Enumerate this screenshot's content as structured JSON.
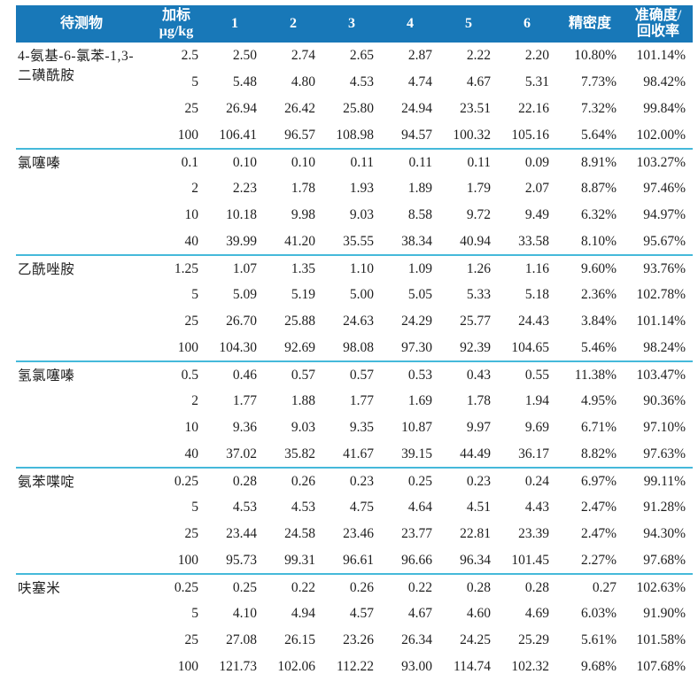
{
  "table": {
    "colors": {
      "header_bg": "#1878b8",
      "header_text": "#ffffff",
      "divider": "#45b9da",
      "body_text": "#1e1e1e"
    },
    "header": {
      "analyte": "待测物",
      "spike_line1": "加标",
      "spike_line2": "μg/kg",
      "replicates": [
        "1",
        "2",
        "3",
        "4",
        "5",
        "6"
      ],
      "precision": "精密度",
      "accuracy_line1": "准确度/",
      "accuracy_line2": "回收率"
    },
    "groups": [
      {
        "analyte": "4-氨基-6-氯苯-1,3-二磺酰胺",
        "rows": [
          {
            "spike": "2.5",
            "values": [
              "2.50",
              "2.74",
              "2.65",
              "2.87",
              "2.22",
              "2.20"
            ],
            "precision": "10.80%",
            "accuracy": "101.14%"
          },
          {
            "spike": "5",
            "values": [
              "5.48",
              "4.80",
              "4.53",
              "4.74",
              "4.67",
              "5.31"
            ],
            "precision": "7.73%",
            "accuracy": "98.42%"
          },
          {
            "spike": "25",
            "values": [
              "26.94",
              "26.42",
              "25.80",
              "24.94",
              "23.51",
              "22.16"
            ],
            "precision": "7.32%",
            "accuracy": "99.84%"
          },
          {
            "spike": "100",
            "values": [
              "106.41",
              "96.57",
              "108.98",
              "94.57",
              "100.32",
              "105.16"
            ],
            "precision": "5.64%",
            "accuracy": "102.00%"
          }
        ]
      },
      {
        "analyte": "氯噻嗪",
        "rows": [
          {
            "spike": "0.1",
            "values": [
              "0.10",
              "0.10",
              "0.11",
              "0.11",
              "0.11",
              "0.09"
            ],
            "precision": "8.91%",
            "accuracy": "103.27%"
          },
          {
            "spike": "2",
            "values": [
              "2.23",
              "1.78",
              "1.93",
              "1.89",
              "1.79",
              "2.07"
            ],
            "precision": "8.87%",
            "accuracy": "97.46%"
          },
          {
            "spike": "10",
            "values": [
              "10.18",
              "9.98",
              "9.03",
              "8.58",
              "9.72",
              "9.49"
            ],
            "precision": "6.32%",
            "accuracy": "94.97%"
          },
          {
            "spike": "40",
            "values": [
              "39.99",
              "41.20",
              "35.55",
              "38.34",
              "40.94",
              "33.58"
            ],
            "precision": "8.10%",
            "accuracy": "95.67%"
          }
        ]
      },
      {
        "analyte": "乙酰唑胺",
        "rows": [
          {
            "spike": "1.25",
            "values": [
              "1.07",
              "1.35",
              "1.10",
              "1.09",
              "1.26",
              "1.16"
            ],
            "precision": "9.60%",
            "accuracy": "93.76%"
          },
          {
            "spike": "5",
            "values": [
              "5.09",
              "5.19",
              "5.00",
              "5.05",
              "5.33",
              "5.18"
            ],
            "precision": "2.36%",
            "accuracy": "102.78%"
          },
          {
            "spike": "25",
            "values": [
              "26.70",
              "25.88",
              "24.63",
              "24.29",
              "25.77",
              "24.43"
            ],
            "precision": "3.84%",
            "accuracy": "101.14%"
          },
          {
            "spike": "100",
            "values": [
              "104.30",
              "92.69",
              "98.08",
              "97.30",
              "92.39",
              "104.65"
            ],
            "precision": "5.46%",
            "accuracy": "98.24%"
          }
        ]
      },
      {
        "analyte": "氢氯噻嗪",
        "rows": [
          {
            "spike": "0.5",
            "values": [
              "0.46",
              "0.57",
              "0.57",
              "0.53",
              "0.43",
              "0.55"
            ],
            "precision": "11.38%",
            "accuracy": "103.47%"
          },
          {
            "spike": "2",
            "values": [
              "1.77",
              "1.88",
              "1.77",
              "1.69",
              "1.78",
              "1.94"
            ],
            "precision": "4.95%",
            "accuracy": "90.36%"
          },
          {
            "spike": "10",
            "values": [
              "9.36",
              "9.03",
              "9.35",
              "10.87",
              "9.97",
              "9.69"
            ],
            "precision": "6.71%",
            "accuracy": "97.10%"
          },
          {
            "spike": "40",
            "values": [
              "37.02",
              "35.82",
              "41.67",
              "39.15",
              "44.49",
              "36.17"
            ],
            "precision": "8.82%",
            "accuracy": "97.63%"
          }
        ]
      },
      {
        "analyte": "氨苯喋啶",
        "rows": [
          {
            "spike": "0.25",
            "values": [
              "0.28",
              "0.26",
              "0.23",
              "0.25",
              "0.23",
              "0.24"
            ],
            "precision": "6.97%",
            "accuracy": "99.11%"
          },
          {
            "spike": "5",
            "values": [
              "4.53",
              "4.53",
              "4.75",
              "4.64",
              "4.51",
              "4.43"
            ],
            "precision": "2.47%",
            "accuracy": "91.28%"
          },
          {
            "spike": "25",
            "values": [
              "23.44",
              "24.58",
              "23.46",
              "23.77",
              "22.81",
              "23.39"
            ],
            "precision": "2.47%",
            "accuracy": "94.30%"
          },
          {
            "spike": "100",
            "values": [
              "95.73",
              "99.31",
              "96.61",
              "96.66",
              "96.34",
              "101.45"
            ],
            "precision": "2.27%",
            "accuracy": "97.68%"
          }
        ]
      },
      {
        "analyte": "呋塞米",
        "rows": [
          {
            "spike": "0.25",
            "values": [
              "0.25",
              "0.22",
              "0.26",
              "0.22",
              "0.28",
              "0.28"
            ],
            "precision": "0.27",
            "accuracy": "102.63%"
          },
          {
            "spike": "5",
            "values": [
              "4.10",
              "4.94",
              "4.57",
              "4.67",
              "4.60",
              "4.69"
            ],
            "precision": "6.03%",
            "accuracy": "91.90%"
          },
          {
            "spike": "25",
            "values": [
              "27.08",
              "26.15",
              "23.26",
              "26.34",
              "24.25",
              "25.29"
            ],
            "precision": "5.61%",
            "accuracy": "101.58%"
          },
          {
            "spike": "100",
            "values": [
              "121.73",
              "102.06",
              "112.22",
              "93.00",
              "114.74",
              "102.32"
            ],
            "precision": "9.68%",
            "accuracy": "107.68%"
          }
        ]
      }
    ]
  }
}
